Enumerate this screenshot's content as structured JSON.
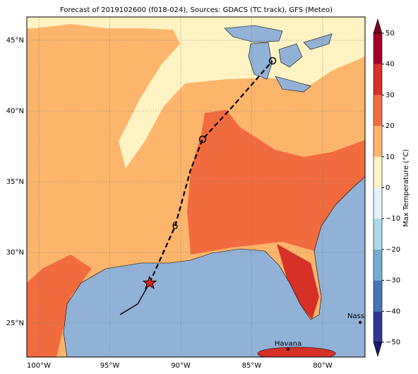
{
  "map": {
    "title": "Forecast of 2019102600 (f018-024), Sources: GDACS (TC track), GFS (Meteo)",
    "lon_ticks": [
      {
        "value": -100,
        "label": "100°W"
      },
      {
        "value": -95,
        "label": "95°W"
      },
      {
        "value": -90,
        "label": "90°W"
      },
      {
        "value": -85,
        "label": "85°W"
      },
      {
        "value": -80,
        "label": "80°W"
      }
    ],
    "lat_ticks": [
      {
        "value": 45,
        "label": "45°N"
      },
      {
        "value": 40,
        "label": "40°N"
      },
      {
        "value": 35,
        "label": "35°N"
      },
      {
        "value": 30,
        "label": "30°N"
      },
      {
        "value": 25,
        "label": "25°N"
      }
    ],
    "colorbar": {
      "label": "Max Temperature (°C)",
      "ticks": [
        {
          "value": -50,
          "label": "−50"
        },
        {
          "value": -40,
          "label": "−40"
        },
        {
          "value": -30,
          "label": "−30"
        },
        {
          "value": -20,
          "label": "−20"
        },
        {
          "value": -10,
          "label": "−10"
        },
        0,
        10,
        20,
        30,
        40,
        50
      ],
      "colors": [
        "#313695",
        "#4575b4",
        "#74add1",
        "#abd9e9",
        "#e0f3f8",
        "#fff3c4",
        "#fdb56b",
        "#f26b3e",
        "#d73027",
        "#a50026"
      ],
      "under_color": "#1a1a6e",
      "over_color": "#7a0020"
    },
    "places": [
      {
        "label": "Havana"
      },
      {
        "label": "Nassau"
      }
    ]
  }
}
